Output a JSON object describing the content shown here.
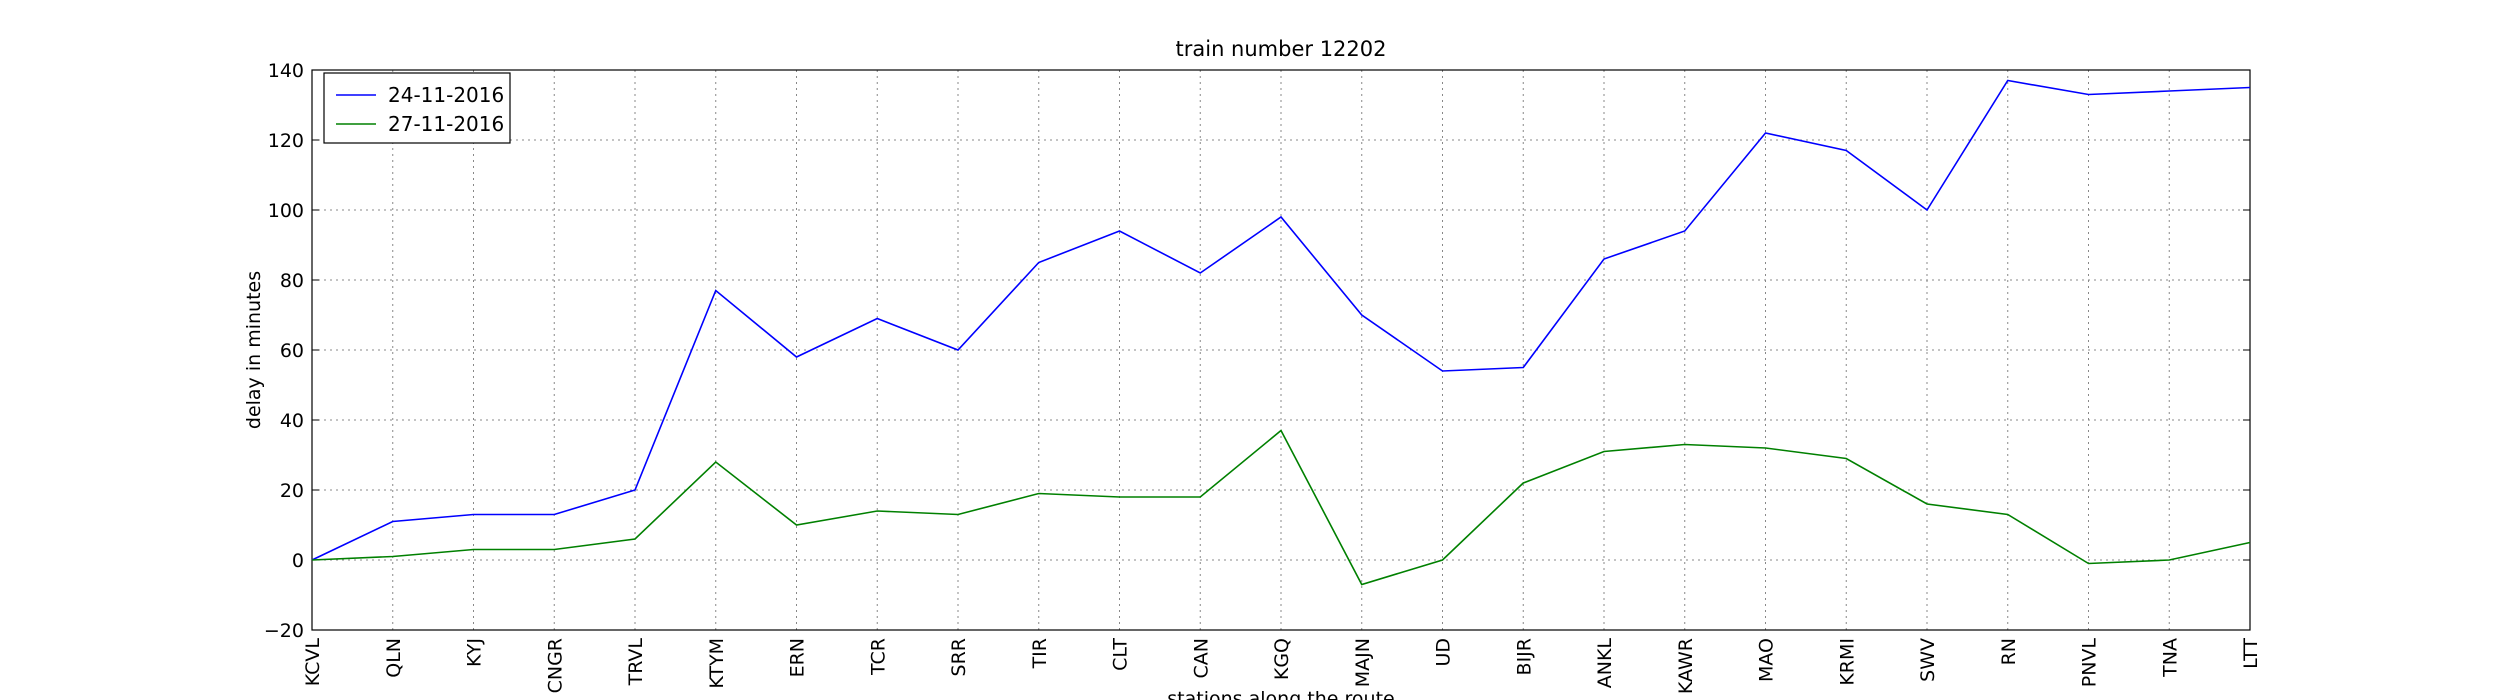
{
  "chart_data": {
    "type": "line",
    "title": "train number 12202",
    "x_label": "stations along the route",
    "y_label": "delay in minutes",
    "categories": [
      "KCVL",
      "QLN",
      "KYJ",
      "CNGR",
      "TRVL",
      "KTYM",
      "ERN",
      "TCR",
      "SRR",
      "TIR",
      "CLT",
      "CAN",
      "KGQ",
      "MAJN",
      "UD",
      "BIJR",
      "ANKL",
      "KAWR",
      "MAO",
      "KRMI",
      "SWV",
      "RN",
      "PNVL",
      "TNA",
      "LTT"
    ],
    "series": [
      {
        "name": "24-11-2016",
        "color": "#0000ff",
        "values": [
          0,
          11,
          13,
          13,
          20,
          77,
          58,
          69,
          60,
          85,
          94,
          82,
          98,
          70,
          54,
          55,
          86,
          94,
          122,
          117,
          100,
          137,
          133,
          134,
          135
        ]
      },
      {
        "name": "27-11-2016",
        "color": "#008000",
        "values": [
          0,
          1,
          3,
          3,
          6,
          28,
          10,
          14,
          13,
          19,
          18,
          18,
          37,
          -7,
          0,
          22,
          31,
          33,
          32,
          29,
          16,
          13,
          -1,
          0,
          5
        ]
      }
    ],
    "ylim": [
      -20,
      140
    ],
    "yticks": [
      {
        "value": -20,
        "label": "−20"
      },
      0,
      20,
      40,
      60,
      80,
      100,
      120,
      140
    ],
    "grid": true,
    "legend": "upper left"
  }
}
